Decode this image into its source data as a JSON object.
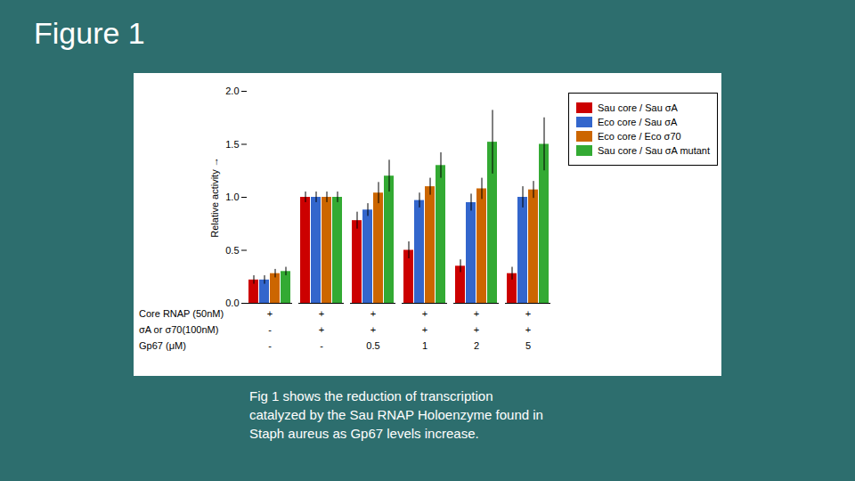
{
  "chart_data": {
    "type": "bar",
    "title": "Figure 1",
    "ylabel": "Relative activity",
    "categories": [
      null,
      null,
      null,
      null,
      null,
      null
    ],
    "series": [
      {
        "name": "Sau core / Sau σA",
        "color": "#cc0000",
        "values": [
          0.22,
          1.0,
          0.78,
          0.5,
          0.35,
          0.28
        ],
        "errors": [
          0.04,
          0.05,
          0.08,
          0.08,
          0.06,
          0.06
        ]
      },
      {
        "name": "Eco core / Sau σA",
        "color": "#3366cc",
        "values": [
          0.22,
          1.0,
          0.88,
          0.97,
          0.95,
          1.0
        ],
        "errors": [
          0.04,
          0.05,
          0.06,
          0.07,
          0.08,
          0.1
        ]
      },
      {
        "name": "Eco core / Eco σ70",
        "color": "#cc6600",
        "values": [
          0.28,
          1.0,
          1.04,
          1.1,
          1.08,
          1.07
        ],
        "errors": [
          0.04,
          0.05,
          0.1,
          0.08,
          0.1,
          0.08
        ]
      },
      {
        "name": "Sau core / Sau σA mutant",
        "color": "#33aa33",
        "values": [
          0.3,
          1.0,
          1.2,
          1.3,
          1.52,
          1.5
        ],
        "errors": [
          0.04,
          0.05,
          0.15,
          0.12,
          0.3,
          0.25
        ]
      }
    ],
    "ylim": [
      0,
      2.0
    ],
    "yticks": [
      {
        "value": 0,
        "label": "0.0"
      },
      {
        "value": 0.5,
        "label": "0.5"
      },
      {
        "value": 1.0,
        "label": "1.0"
      },
      {
        "value": 1.5,
        "label": "1.5"
      },
      {
        "value": 2.0,
        "label": "2.0"
      }
    ],
    "grid": false,
    "legend": "right",
    "conditions": [
      {
        "label": "Core RNAP (50nM)",
        "values": [
          "+",
          "+",
          "+",
          "+",
          "+",
          "+"
        ]
      },
      {
        "label": "σA or σ70(100nM)",
        "values": [
          "-",
          "+",
          "+",
          "+",
          "+",
          "+"
        ]
      },
      {
        "label": "Gp67 (μM)",
        "values": [
          "-",
          "-",
          "0.5",
          "1",
          "2",
          "5"
        ]
      }
    ],
    "caption": [
      "Fig 1 shows the reduction of transcription",
      "catalyzed by the Sau RNAP Holoenzyme found in",
      "Staph aureus as Gp67 levels increase."
    ]
  }
}
